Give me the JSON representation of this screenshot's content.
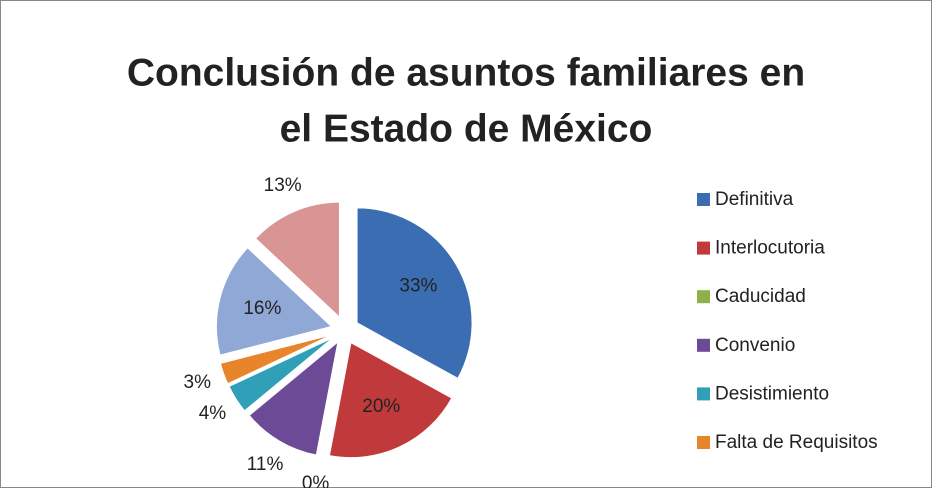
{
  "chart_data": {
    "type": "pie",
    "title": [
      "Conclusión de asuntos familiares en",
      "el Estado de México"
    ],
    "categories": [
      "Definitiva",
      "Interlocutoria",
      "Caducidad",
      "Convenio",
      "Desistimiento",
      "Falta de Requisitos",
      null,
      null
    ],
    "values": [
      33,
      20,
      0,
      11,
      4,
      3,
      16,
      13
    ],
    "value_labels": [
      "33%",
      "20%",
      "0%",
      "11%",
      "4%",
      "3%",
      "16%",
      "13%"
    ],
    "colors": [
      "#3b6db3",
      "#c0393b",
      "#8db048",
      "#6c4a96",
      "#2fa0b8",
      "#e8852a",
      "#8fa8d6",
      "#d99594"
    ],
    "legend": "right"
  }
}
